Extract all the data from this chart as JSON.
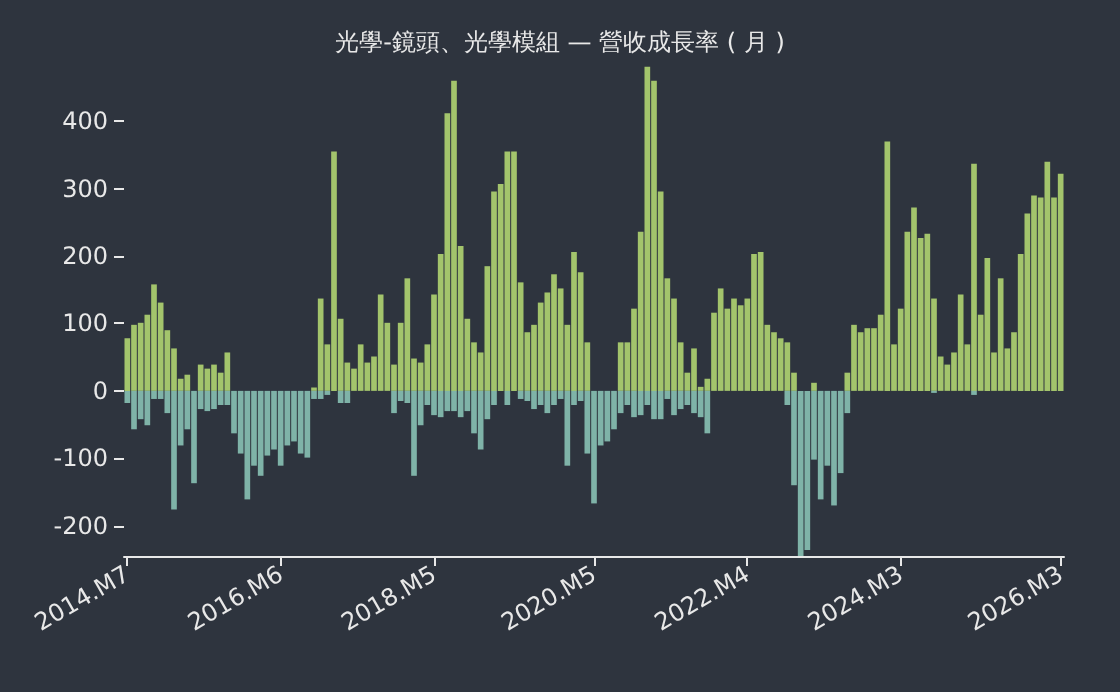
{
  "chart_data": {
    "type": "bar",
    "title": "光學-鏡頭、光學模組 — 營收成長率 ( 月 )",
    "stacked": true,
    "categories": [
      "2014.M7",
      null,
      null,
      null,
      null,
      null,
      null,
      null,
      null,
      null,
      null,
      null,
      null,
      null,
      null,
      null,
      null,
      null,
      null,
      null,
      null,
      null,
      null,
      "2016.M6",
      null,
      null,
      null,
      null,
      null,
      null,
      null,
      null,
      null,
      null,
      null,
      null,
      null,
      null,
      null,
      null,
      null,
      null,
      null,
      null,
      null,
      null,
      "2018.M5",
      null,
      null,
      null,
      null,
      null,
      null,
      null,
      null,
      null,
      null,
      null,
      null,
      null,
      null,
      null,
      null,
      null,
      null,
      null,
      null,
      null,
      null,
      null,
      "2020.M5",
      null,
      null,
      null,
      null,
      null,
      null,
      null,
      null,
      null,
      null,
      null,
      null,
      null,
      null,
      null,
      null,
      null,
      null,
      null,
      null,
      null,
      null,
      "2022.M4",
      null,
      null,
      null,
      null,
      null,
      null,
      null,
      null,
      null,
      null,
      null,
      null,
      null,
      null,
      null,
      null,
      null,
      null,
      null,
      null,
      null,
      null,
      "2024.M3",
      null,
      null,
      null,
      null,
      null,
      null,
      null,
      null,
      null,
      null,
      null,
      null,
      null,
      null,
      null,
      null,
      null,
      null,
      null,
      null,
      null,
      null,
      null,
      "2026.M3"
    ],
    "series": [
      {
        "color": "#a3c46c",
        "values": [
          78,
          98,
          101,
          113,
          158,
          131,
          90,
          63,
          18,
          24,
          null,
          39,
          33,
          39,
          27,
          57,
          null,
          null,
          null,
          null,
          null,
          null,
          null,
          null,
          null,
          null,
          null,
          null,
          5,
          137,
          69,
          355,
          107,
          42,
          33,
          69,
          42,
          51,
          143,
          101,
          39,
          101,
          167,
          48,
          42,
          69,
          143,
          203,
          412,
          460,
          215,
          107,
          72,
          57,
          185,
          296,
          307,
          355,
          355,
          161,
          87,
          98,
          131,
          146,
          173,
          152,
          98,
          206,
          176,
          72,
          null,
          null,
          null,
          null,
          72,
          72,
          122,
          236,
          481,
          460,
          296,
          167,
          137,
          72,
          27,
          63,
          6,
          18,
          116,
          152,
          122,
          137,
          127,
          137,
          203,
          206,
          98,
          87,
          78,
          72,
          27,
          null,
          null,
          12,
          null,
          null,
          null,
          null,
          27,
          98,
          87,
          93,
          93,
          113,
          370,
          69,
          122,
          236,
          272,
          227,
          233,
          137,
          51,
          39,
          57,
          143,
          69,
          337,
          113,
          197,
          57,
          167,
          63,
          87,
          203,
          263,
          290,
          287,
          340,
          287,
          322
        ]
      },
      {
        "color": "#7fb3a8",
        "values": [
          -18,
          -57,
          -42,
          -51,
          -12,
          -12,
          -33,
          -176,
          -81,
          -57,
          -137,
          -27,
          -30,
          -27,
          -21,
          -21,
          -63,
          -93,
          -161,
          -111,
          -126,
          -96,
          -87,
          -111,
          -81,
          -75,
          -93,
          -99,
          -12,
          -12,
          -6,
          null,
          -18,
          -18,
          null,
          null,
          null,
          null,
          null,
          null,
          -33,
          -15,
          -18,
          -126,
          -51,
          -21,
          -36,
          -39,
          -30,
          -30,
          -39,
          -30,
          -63,
          -87,
          -42,
          -21,
          null,
          -21,
          null,
          -12,
          -15,
          -27,
          -21,
          -33,
          -21,
          -12,
          -111,
          -21,
          -15,
          -93,
          -167,
          -81,
          -75,
          -57,
          -33,
          -21,
          -39,
          -36,
          -21,
          -42,
          -42,
          -12,
          -36,
          -27,
          -21,
          -33,
          -39,
          -63,
          null,
          null,
          null,
          null,
          null,
          null,
          null,
          null,
          null,
          null,
          null,
          -21,
          -140,
          -245,
          -236,
          -102,
          -161,
          -111,
          -170,
          -122,
          -33,
          null,
          null,
          null,
          null,
          null,
          null,
          null,
          null,
          null,
          null,
          null,
          null,
          -3,
          null,
          null,
          null,
          null,
          null,
          -6,
          null,
          null,
          null,
          null,
          null,
          null,
          null,
          null,
          null,
          null,
          null,
          null,
          null
        ]
      }
    ],
    "ylim": [
      -245,
      485
    ],
    "yticks": [
      -200,
      -100,
      0,
      100,
      200,
      300,
      400
    ]
  }
}
